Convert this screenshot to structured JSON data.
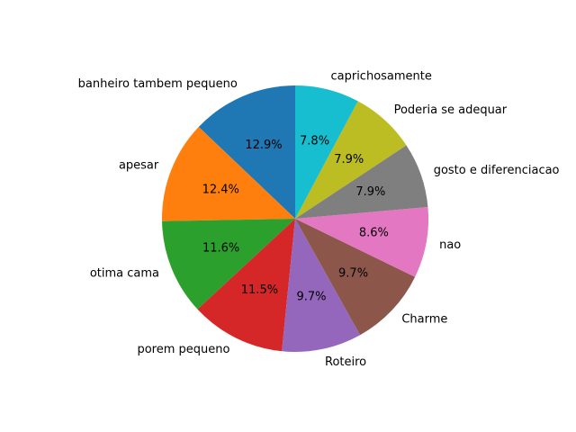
{
  "chart_data": {
    "type": "pie",
    "title": "",
    "categories": [
      "banheiro tambem pequeno",
      "apesar",
      "otima cama",
      "porem pequeno",
      "Roteiro",
      "Charme",
      "nao",
      "gosto e diferenciacao",
      "Poderia se adequar",
      "caprichosamente"
    ],
    "values": [
      12.9,
      12.4,
      11.6,
      11.5,
      9.7,
      9.7,
      8.6,
      7.9,
      7.9,
      7.8
    ],
    "percent_labels": [
      "12.9%",
      "12.4%",
      "11.6%",
      "11.5%",
      "9.7%",
      "9.7%",
      "8.6%",
      "7.9%",
      "7.9%",
      "7.8%"
    ],
    "colors": [
      "#1f77b4",
      "#ff7f0e",
      "#2ca02c",
      "#d62728",
      "#9467bd",
      "#8c564b",
      "#e377c2",
      "#7f7f7f",
      "#bcbd22",
      "#17becf"
    ],
    "start_angle_deg": 90,
    "direction": "counterclockwise",
    "legend": "none"
  }
}
